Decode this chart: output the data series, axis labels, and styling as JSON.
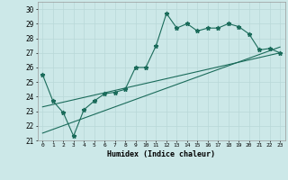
{
  "xlabel": "Humidex (Indice chaleur)",
  "background_color": "#cce8e8",
  "line_color": "#1a6b5a",
  "grid_color": "#b8d8d8",
  "xlim": [
    -0.5,
    23.5
  ],
  "ylim": [
    21,
    30.5
  ],
  "xticks": [
    0,
    1,
    2,
    3,
    4,
    5,
    6,
    7,
    8,
    9,
    10,
    11,
    12,
    13,
    14,
    15,
    16,
    17,
    18,
    19,
    20,
    21,
    22,
    23
  ],
  "yticks": [
    21,
    22,
    23,
    24,
    25,
    26,
    27,
    28,
    29,
    30
  ],
  "line_main": {
    "x": [
      0,
      1,
      2,
      3,
      4,
      5,
      6,
      7,
      8,
      9,
      10,
      11,
      12,
      13,
      14,
      15,
      16,
      17,
      18,
      19,
      20,
      21,
      22,
      23
    ],
    "y": [
      25.5,
      23.7,
      22.9,
      21.3,
      23.1,
      23.7,
      24.2,
      24.3,
      24.5,
      26.0,
      26.0,
      27.5,
      29.7,
      28.7,
      29.0,
      28.5,
      28.7,
      28.7,
      29.0,
      28.8,
      28.3,
      27.2,
      27.3,
      27.0
    ]
  },
  "line_upper": {
    "x": [
      0,
      23
    ],
    "y": [
      23.3,
      27.0
    ]
  },
  "line_lower": {
    "x": [
      0,
      23
    ],
    "y": [
      21.5,
      27.4
    ]
  }
}
